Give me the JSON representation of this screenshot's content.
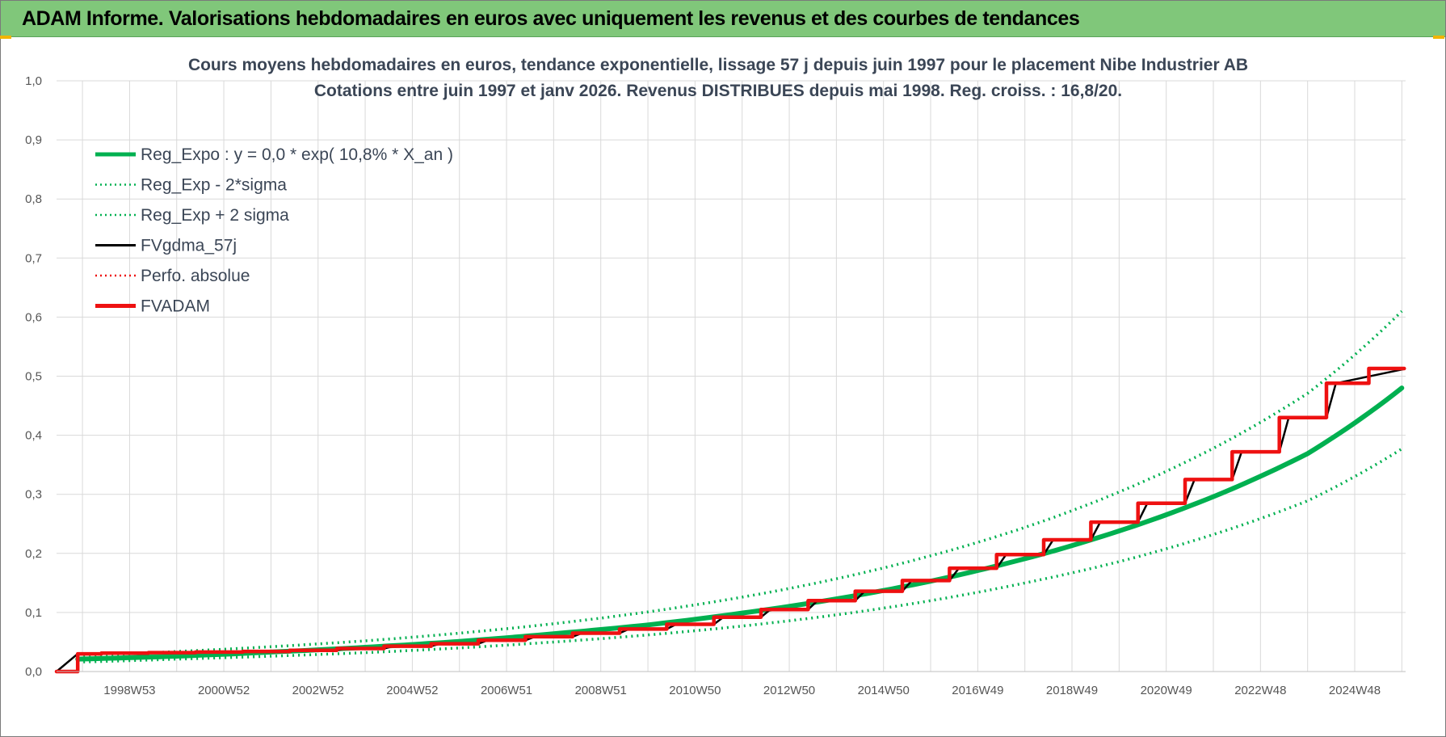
{
  "header": {
    "title": "ADAM Informe. Valorisations hebdomadaires en euros avec uniquement les revenus et des courbes de tendances"
  },
  "colors": {
    "header_bg": "#80c77a",
    "reg_green": "#00b050",
    "fvgdma_black": "#000000",
    "fvadam_red": "#ee1111",
    "grid": "#d9d9d9"
  },
  "chart_data": {
    "type": "line",
    "title_line1": "Cours moyens hebdomadaires en euros, tendance exponentielle, lissage 57 j depuis juin 1997 pour le placement Nibe Industrier AB",
    "title_line2": "Cotations entre juin 1997 et janv 2026.  Revenus DISTRIBUES depuis mai 1998. Reg.  croiss. : 16,8/20.",
    "xlabel": "",
    "ylabel": "",
    "xlim": [
      1997.45,
      2026.08
    ],
    "ylim": [
      0,
      1.0
    ],
    "y_ticks": [
      "0,0",
      "0,1",
      "0,2",
      "0,3",
      "0,4",
      "0,5",
      "0,6",
      "0,7",
      "0,8",
      "0,9",
      "1,0"
    ],
    "x_tick_labels": [
      {
        "label": "1998W53",
        "x": 1999.0
      },
      {
        "label": "2000W52",
        "x": 2001.0
      },
      {
        "label": "2002W52",
        "x": 2003.0
      },
      {
        "label": "2004W52",
        "x": 2005.0
      },
      {
        "label": "2006W51",
        "x": 2007.0
      },
      {
        "label": "2008W51",
        "x": 2009.0
      },
      {
        "label": "2010W50",
        "x": 2011.0
      },
      {
        "label": "2012W50",
        "x": 2013.0
      },
      {
        "label": "2014W50",
        "x": 2015.0
      },
      {
        "label": "2016W49",
        "x": 2017.0
      },
      {
        "label": "2018W49",
        "x": 2019.0
      },
      {
        "label": "2020W49",
        "x": 2021.0
      },
      {
        "label": "2022W48",
        "x": 2023.0
      },
      {
        "label": "2024W48",
        "x": 2025.0
      }
    ],
    "grid": true,
    "legend_position": "top-left",
    "legend": [
      {
        "label": "Reg_Expo : y = 0,0 * exp( 10,8% *  X_an )",
        "style": "solid-thick",
        "color": "#00b050"
      },
      {
        "label": "Reg_Exp - 2*sigma",
        "style": "dotted",
        "color": "#00b050"
      },
      {
        "label": "Reg_Exp + 2 sigma",
        "style": "dotted",
        "color": "#00b050"
      },
      {
        "label": "FVgdma_57j",
        "style": "solid",
        "color": "#000000"
      },
      {
        "label": "Perfo. absolue",
        "style": "dotted",
        "color": "#ee1111"
      },
      {
        "label": "FVADAM",
        "style": "solid-thick",
        "color": "#ee1111"
      }
    ],
    "series": [
      {
        "name": "Reg_Expo : y = 0,0 * exp( 10,8% *  X_an )",
        "x": [
          1997.9,
          2000,
          2002,
          2004,
          2006,
          2008,
          2010,
          2012,
          2014,
          2016,
          2018,
          2020,
          2022,
          2024,
          2026
        ],
        "values": [
          0.021,
          0.026,
          0.033,
          0.041,
          0.051,
          0.064,
          0.079,
          0.099,
          0.123,
          0.153,
          0.191,
          0.238,
          0.296,
          0.369,
          0.48
        ]
      },
      {
        "name": "Reg_Exp - 2*sigma",
        "x": [
          1997.9,
          2000,
          2002,
          2004,
          2006,
          2008,
          2010,
          2012,
          2014,
          2016,
          2018,
          2020,
          2022,
          2024,
          2026
        ],
        "values": [
          0.016,
          0.021,
          0.026,
          0.032,
          0.04,
          0.05,
          0.062,
          0.077,
          0.096,
          0.12,
          0.15,
          0.186,
          0.232,
          0.289,
          0.377
        ]
      },
      {
        "name": "Reg_Exp + 2 sigma",
        "x": [
          1997.9,
          2000,
          2002,
          2004,
          2006,
          2008,
          2010,
          2012,
          2014,
          2016,
          2018,
          2020,
          2022,
          2024,
          2026
        ],
        "values": [
          0.026,
          0.034,
          0.042,
          0.052,
          0.065,
          0.081,
          0.101,
          0.126,
          0.157,
          0.196,
          0.244,
          0.304,
          0.378,
          0.471,
          0.61
        ]
      },
      {
        "name": "FVgdma_57j",
        "x": [
          1997.45,
          1997.9,
          1998.4,
          1998.6,
          1999.4,
          1999.6,
          2000.4,
          2000.6,
          2001.4,
          2001.6,
          2002.4,
          2002.6,
          2003.4,
          2003.6,
          2004.4,
          2004.6,
          2005.4,
          2005.6,
          2006.4,
          2006.6,
          2007.4,
          2007.6,
          2008.4,
          2008.6,
          2009.4,
          2009.6,
          2010.4,
          2010.6,
          2011.4,
          2011.6,
          2012.4,
          2012.6,
          2013.4,
          2013.6,
          2014.4,
          2014.6,
          2015.4,
          2015.6,
          2016.4,
          2016.6,
          2017.4,
          2017.6,
          2018.4,
          2018.6,
          2019.4,
          2019.6,
          2020.4,
          2020.6,
          2021.4,
          2021.6,
          2022.4,
          2022.6,
          2023.4,
          2023.6,
          2024.4,
          2024.6,
          2026.05
        ],
        "values": [
          0.0,
          0.03,
          0.03,
          0.031,
          0.031,
          0.032,
          0.032,
          0.033,
          0.033,
          0.034,
          0.034,
          0.036,
          0.036,
          0.039,
          0.039,
          0.043,
          0.043,
          0.047,
          0.047,
          0.053,
          0.053,
          0.059,
          0.059,
          0.065,
          0.065,
          0.072,
          0.072,
          0.08,
          0.08,
          0.092,
          0.092,
          0.105,
          0.105,
          0.12,
          0.12,
          0.136,
          0.136,
          0.154,
          0.154,
          0.175,
          0.175,
          0.198,
          0.198,
          0.223,
          0.223,
          0.253,
          0.253,
          0.285,
          0.285,
          0.325,
          0.325,
          0.372,
          0.372,
          0.43,
          0.43,
          0.488,
          0.512
        ]
      },
      {
        "name": "FVADAM",
        "x": [
          1997.45,
          1997.9,
          1997.9,
          1998.4,
          1998.4,
          1999.4,
          1999.4,
          2000.4,
          2000.4,
          2001.4,
          2001.4,
          2002.4,
          2002.4,
          2003.4,
          2003.4,
          2004.4,
          2004.4,
          2005.4,
          2005.4,
          2006.4,
          2006.4,
          2007.4,
          2007.4,
          2008.4,
          2008.4,
          2009.4,
          2009.4,
          2010.4,
          2010.4,
          2011.4,
          2011.4,
          2012.4,
          2012.4,
          2013.4,
          2013.4,
          2014.4,
          2014.4,
          2015.4,
          2015.4,
          2016.4,
          2016.4,
          2017.4,
          2017.4,
          2018.4,
          2018.4,
          2019.4,
          2019.4,
          2020.4,
          2020.4,
          2021.4,
          2021.4,
          2022.4,
          2022.4,
          2023.4,
          2023.4,
          2024.4,
          2024.4,
          2025.3,
          2025.3,
          2026.05
        ],
        "values": [
          0.0,
          0.0,
          0.03,
          0.03,
          0.031,
          0.031,
          0.032,
          0.032,
          0.033,
          0.033,
          0.034,
          0.034,
          0.036,
          0.036,
          0.039,
          0.039,
          0.043,
          0.043,
          0.047,
          0.047,
          0.053,
          0.053,
          0.059,
          0.059,
          0.065,
          0.065,
          0.072,
          0.072,
          0.08,
          0.08,
          0.092,
          0.092,
          0.105,
          0.105,
          0.12,
          0.12,
          0.136,
          0.136,
          0.154,
          0.154,
          0.175,
          0.175,
          0.198,
          0.198,
          0.223,
          0.223,
          0.253,
          0.253,
          0.285,
          0.285,
          0.325,
          0.325,
          0.372,
          0.372,
          0.43,
          0.43,
          0.488,
          0.488,
          0.513,
          0.513
        ]
      }
    ]
  }
}
